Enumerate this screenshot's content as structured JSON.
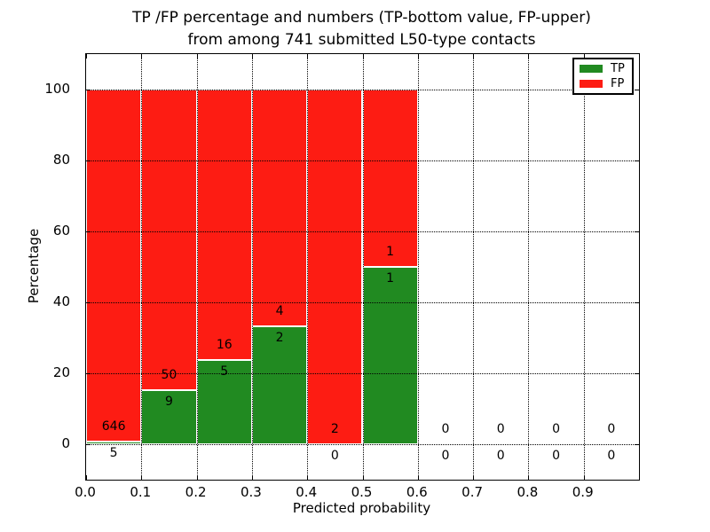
{
  "figure": {
    "title_line1": "TP /FP percentage and numbers (TP-bottom value, FP-upper)",
    "title_line2": "from among 741 submitted L50-type contacts",
    "xlabel": "Predicted probability",
    "ylabel": "Percentage"
  },
  "legend": {
    "items": [
      {
        "label": "TP",
        "color": "#218A21"
      },
      {
        "label": "FP",
        "color": "#FD1C13"
      }
    ]
  },
  "colors": {
    "tp": "#218A21",
    "fp": "#FD1C13",
    "bar_edge": "#ffffff",
    "grid": "#000000",
    "text": "#000000"
  },
  "chart_data": {
    "type": "bar",
    "stacked": true,
    "title": "TP /FP percentage and numbers (TP-bottom value, FP-upper) from among 741 submitted L50-type contacts",
    "xlabel": "Predicted probability",
    "ylabel": "Percentage",
    "xlim": [
      0.0,
      1.0
    ],
    "ylim": [
      -10,
      110
    ],
    "xticks": [
      "0.0",
      "0.1",
      "0.2",
      "0.3",
      "0.4",
      "0.5",
      "0.6",
      "0.7",
      "0.8",
      "0.9"
    ],
    "xtick_values": [
      0.0,
      0.1,
      0.2,
      0.3,
      0.4,
      0.5,
      0.6,
      0.7,
      0.8,
      0.9
    ],
    "yticks": [
      "0",
      "20",
      "40",
      "60",
      "80",
      "100"
    ],
    "ytick_values": [
      0,
      20,
      40,
      60,
      80,
      100
    ],
    "grid": "dotted, both axes, drawn above bars",
    "legend_position": "upper right",
    "total_contacts": 741,
    "series_names": [
      "TP",
      "FP"
    ],
    "bins": [
      {
        "range": [
          0.0,
          0.1
        ],
        "tp": 5,
        "fp": 646,
        "tp_pct": 0.77,
        "fp_pct": 99.23,
        "bar_total_pct": 100
      },
      {
        "range": [
          0.1,
          0.2
        ],
        "tp": 9,
        "fp": 50,
        "tp_pct": 15.25,
        "fp_pct": 84.75,
        "bar_total_pct": 100
      },
      {
        "range": [
          0.2,
          0.3
        ],
        "tp": 5,
        "fp": 16,
        "tp_pct": 23.81,
        "fp_pct": 76.19,
        "bar_total_pct": 100
      },
      {
        "range": [
          0.3,
          0.4
        ],
        "tp": 2,
        "fp": 4,
        "tp_pct": 33.33,
        "fp_pct": 66.67,
        "bar_total_pct": 100
      },
      {
        "range": [
          0.4,
          0.5
        ],
        "tp": 0,
        "fp": 2,
        "tp_pct": 0.0,
        "fp_pct": 100.0,
        "bar_total_pct": 100
      },
      {
        "range": [
          0.5,
          0.6
        ],
        "tp": 1,
        "fp": 1,
        "tp_pct": 50.0,
        "fp_pct": 50.0,
        "bar_total_pct": 100
      },
      {
        "range": [
          0.6,
          0.7
        ],
        "tp": 0,
        "fp": 0,
        "tp_pct": 0,
        "fp_pct": 0,
        "bar_total_pct": 0
      },
      {
        "range": [
          0.7,
          0.8
        ],
        "tp": 0,
        "fp": 0,
        "tp_pct": 0,
        "fp_pct": 0,
        "bar_total_pct": 0
      },
      {
        "range": [
          0.8,
          0.9
        ],
        "tp": 0,
        "fp": 0,
        "tp_pct": 0,
        "fp_pct": 0,
        "bar_total_pct": 0
      },
      {
        "range": [
          0.9,
          1.0
        ],
        "tp": 0,
        "fp": 0,
        "tp_pct": 0,
        "fp_pct": 0,
        "bar_total_pct": 0
      }
    ]
  }
}
